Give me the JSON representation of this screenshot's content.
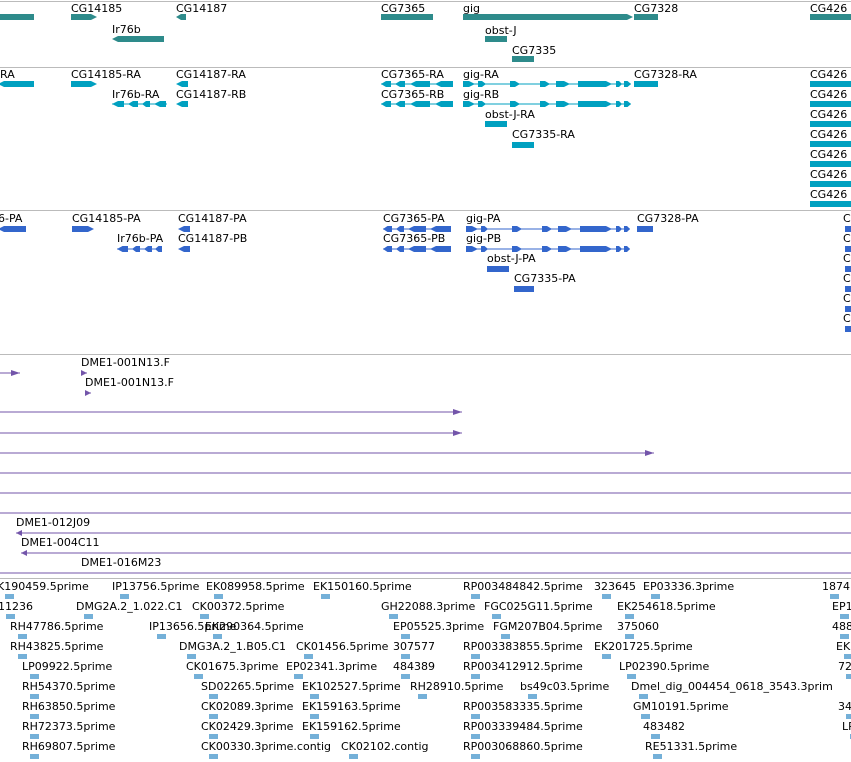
{
  "colors": {
    "gene": "#2e8b8b",
    "transcript": "#00a0c0",
    "protein": "#3366cc",
    "clone": "#7355aa",
    "est": "#74b0d8",
    "divider": "#bbbbbb"
  },
  "tracks": {
    "genes": {
      "features": [
        {
          "label": ""
        },
        {
          "label": "CG14185"
        },
        {
          "label": "CG14187"
        },
        {
          "label": "Ir76b"
        },
        {
          "label": "CG7365"
        },
        {
          "label": "gig"
        },
        {
          "label": "CG7328"
        },
        {
          "label": "obst-J"
        },
        {
          "label": "CG7335"
        },
        {
          "label": "CG426"
        }
      ]
    },
    "transcripts": {
      "features": [
        {
          "label": "RA"
        },
        {
          "label": "CG14185-RA"
        },
        {
          "label": "CG14187-RA"
        },
        {
          "label": "CG14187-RB"
        },
        {
          "label": "Ir76b-RA"
        },
        {
          "label": "CG7365-RA"
        },
        {
          "label": "CG7365-RB"
        },
        {
          "label": "gig-RA"
        },
        {
          "label": "gig-RB"
        },
        {
          "label": "CG7328-RA"
        },
        {
          "label": "obst-J-RA"
        },
        {
          "label": "CG7335-RA"
        },
        {
          "label": "CG426"
        },
        {
          "label": "CG426"
        },
        {
          "label": "CG426"
        },
        {
          "label": "CG426"
        },
        {
          "label": "CG426"
        },
        {
          "label": "CG426"
        },
        {
          "label": "CG426"
        }
      ]
    },
    "proteins": {
      "features": [
        {
          "label": "6-PA"
        },
        {
          "label": "CG14185-PA"
        },
        {
          "label": "CG14187-PA"
        },
        {
          "label": "CG14187-PB"
        },
        {
          "label": "Ir76b-PA"
        },
        {
          "label": "CG7365-PA"
        },
        {
          "label": "CG7365-PB"
        },
        {
          "label": "gig-PA"
        },
        {
          "label": "gig-PB"
        },
        {
          "label": "CG7328-PA"
        },
        {
          "label": "obst-J-PA"
        },
        {
          "label": "CG7335-PA"
        },
        {
          "label": "C"
        },
        {
          "label": "C"
        },
        {
          "label": "C"
        },
        {
          "label": "C"
        },
        {
          "label": "C"
        },
        {
          "label": "C"
        }
      ]
    },
    "clones": {
      "features": [
        {
          "label": "DME1-001N13.F"
        },
        {
          "label": "DME1-001N13.F"
        },
        {
          "label": "DME1-012J09"
        },
        {
          "label": "DME1-004C11"
        },
        {
          "label": "DME1-016M23"
        }
      ]
    },
    "ests": {
      "features": [
        {
          "label": "K190459.5prime"
        },
        {
          "label": "IP13756.5prime"
        },
        {
          "label": "EK089958.5prime"
        },
        {
          "label": "EK150160.5prime"
        },
        {
          "label": "RP003484842.5prime"
        },
        {
          "label": "323645"
        },
        {
          "label": "EP03336.3prime"
        },
        {
          "label": "1874"
        },
        {
          "label": "11236"
        },
        {
          "label": "DMG2A.2_1.022.C1"
        },
        {
          "label": "CK00372.5prime"
        },
        {
          "label": "GH22088.3prime"
        },
        {
          "label": "FGC025G11.5prime"
        },
        {
          "label": "EK254618.5prime"
        },
        {
          "label": "EP1"
        },
        {
          "label": "RH47786.5prime"
        },
        {
          "label": "IP13656.5prime"
        },
        {
          "label": "EK290364.5prime"
        },
        {
          "label": "EP05525.3prime"
        },
        {
          "label": "FGM207B04.5prime"
        },
        {
          "label": "375060"
        },
        {
          "label": "488"
        },
        {
          "label": "RH43825.5prime"
        },
        {
          "label": "DMG3A.2_1.B05.C1"
        },
        {
          "label": "CK01456.5prime"
        },
        {
          "label": "307577"
        },
        {
          "label": "RP003383855.5prime"
        },
        {
          "label": "EK201725.5prime"
        },
        {
          "label": "EK"
        },
        {
          "label": "LP09922.5prime"
        },
        {
          "label": "CK01675.3prime"
        },
        {
          "label": "EP02341.3prime"
        },
        {
          "label": "484389"
        },
        {
          "label": "RP003412912.5prime"
        },
        {
          "label": "LP02390.5prime"
        },
        {
          "label": "72"
        },
        {
          "label": "RH54370.5prime"
        },
        {
          "label": "SD02265.5prime"
        },
        {
          "label": "EK102527.5prime"
        },
        {
          "label": "RH28910.5prime"
        },
        {
          "label": "bs49c03.5prime"
        },
        {
          "label": "Dmel_dig_004454_0618_3543.3prim"
        },
        {
          "label": "RH63850.5prime"
        },
        {
          "label": "CK02089.3prime"
        },
        {
          "label": "EK159163.5prime"
        },
        {
          "label": "RP003583335.5prime"
        },
        {
          "label": "GM10191.5prime"
        },
        {
          "label": "34"
        },
        {
          "label": "RH72373.5prime"
        },
        {
          "label": "CK02429.3prime"
        },
        {
          "label": "EK159162.5prime"
        },
        {
          "label": "RP003339484.5prime"
        },
        {
          "label": "483482"
        },
        {
          "label": "LP"
        },
        {
          "label": "RH69807.5prime"
        },
        {
          "label": "CK00330.3prime.contig"
        },
        {
          "label": "CK02102.contig"
        },
        {
          "label": "RP003068860.5prime"
        },
        {
          "label": "RE51331.5prime"
        }
      ]
    }
  }
}
